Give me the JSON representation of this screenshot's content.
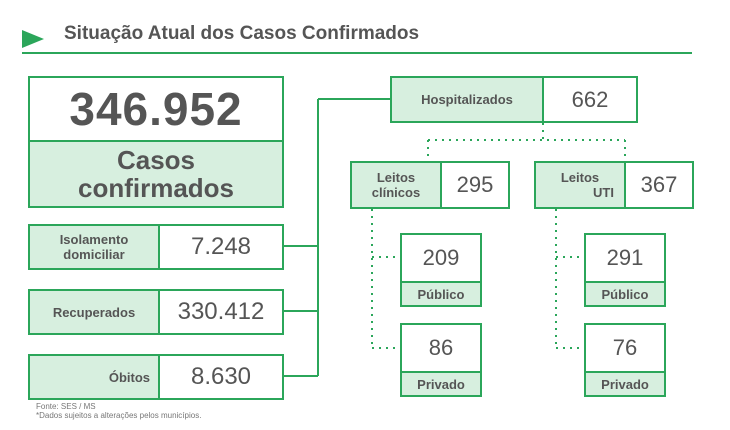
{
  "header": {
    "title": "Situação Atual dos Casos Confirmados"
  },
  "confirmed": {
    "value": "346.952",
    "label_line1": "Casos",
    "label_line2": "confirmados"
  },
  "isolamento": {
    "label_line1": "Isolamento",
    "label_line2": "domiciliar",
    "value": "7.248"
  },
  "recuperados": {
    "label": "Recuperados",
    "value": "330.412"
  },
  "obitos": {
    "label": "Óbitos",
    "value": "8.630"
  },
  "hospitalizados": {
    "label": "Hospitalizados",
    "value": "662"
  },
  "leitos_clinicos": {
    "label_line1": "Leitos",
    "label_line2": "clínicos",
    "value": "295",
    "publico": {
      "value": "209",
      "label": "Público"
    },
    "privado": {
      "value": "86",
      "label": "Privado"
    }
  },
  "leitos_uti": {
    "label_line1": "Leitos",
    "label_line2": "UTI",
    "value": "367",
    "publico": {
      "value": "291",
      "label": "Público"
    },
    "privado": {
      "value": "76",
      "label": "Privado"
    }
  },
  "footer": {
    "source": "Fonte: SES / MS",
    "note": "*Dados sujeitos a alterações pelos municípios."
  },
  "colors": {
    "accent_green": "#2ba65a",
    "fill_light_green": "#d7efdf",
    "text_gray": "#555555"
  }
}
